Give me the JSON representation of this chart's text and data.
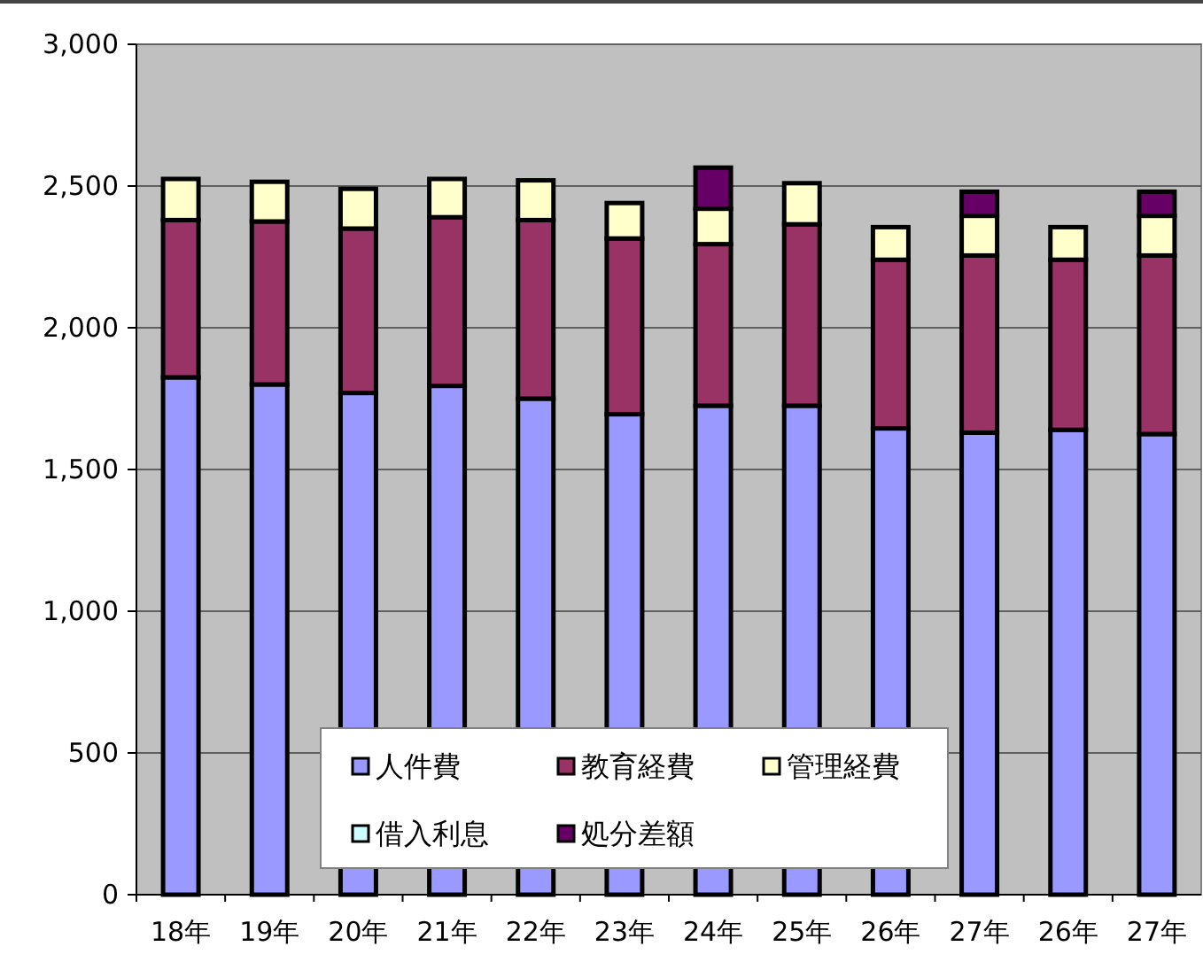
{
  "chart_data": {
    "type": "bar",
    "stacked": true,
    "categories": [
      "18年",
      "19年",
      "20年",
      "21年",
      "22年",
      "23年",
      "24年",
      "25年",
      "26年",
      "27年",
      "26年",
      "27年"
    ],
    "series": [
      {
        "name": "人件費",
        "color": "#9999ff",
        "values": [
          1825,
          1800,
          1770,
          1795,
          1750,
          1695,
          1725,
          1725,
          1645,
          1630,
          1640,
          1625
        ]
      },
      {
        "name": "教育経費",
        "color": "#993366",
        "values": [
          555,
          575,
          580,
          595,
          630,
          620,
          570,
          640,
          595,
          625,
          600,
          630
        ]
      },
      {
        "name": "管理経費",
        "color": "#ffffcc",
        "values": [
          145,
          140,
          140,
          135,
          140,
          125,
          125,
          145,
          115,
          140,
          115,
          140
        ]
      },
      {
        "name": "借入利息",
        "color": "#ccffff",
        "values": [
          null,
          null,
          null,
          null,
          null,
          null,
          null,
          null,
          null,
          null,
          null,
          null
        ]
      },
      {
        "name": "処分差額",
        "color": "#660066",
        "values": [
          null,
          null,
          null,
          null,
          null,
          null,
          145,
          null,
          null,
          85,
          null,
          85
        ]
      }
    ],
    "ylim": [
      0,
      3000
    ],
    "yticks": [
      {
        "value": 0,
        "label": "0"
      },
      {
        "value": 500,
        "label": "500"
      },
      {
        "value": 1000,
        "label": "1,000"
      },
      {
        "value": 1500,
        "label": "1,500"
      },
      {
        "value": 2000,
        "label": "2,000"
      },
      {
        "value": 2500,
        "label": "2,500"
      },
      {
        "value": 3000,
        "label": "3,000"
      }
    ],
    "grid": "y",
    "legend": "bottom"
  }
}
